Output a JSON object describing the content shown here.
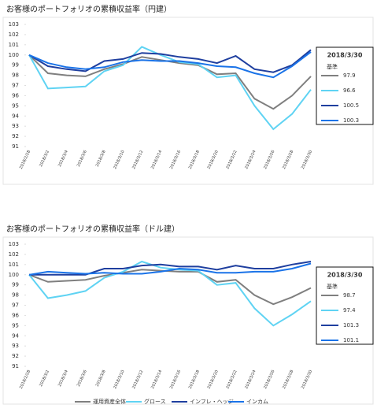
{
  "chart_data": [
    {
      "type": "line",
      "title": "お客様のポートフォリオの累積収益率（円建）",
      "categories": [
        "2018/2/28",
        "2018/3/2",
        "2018/3/4",
        "2018/3/6",
        "2018/3/8",
        "2018/3/10",
        "2018/3/12",
        "2018/3/14",
        "2018/3/16",
        "2018/3/18",
        "2018/3/20",
        "2018/3/22",
        "2018/3/24",
        "2018/3/26",
        "2018/3/28",
        "2018/3/30"
      ],
      "ylim": [
        91,
        103
      ],
      "yticks": [
        91,
        92,
        93,
        94,
        95,
        96,
        97,
        98,
        99,
        100,
        101,
        102,
        103
      ],
      "box_title": "2018/3/30",
      "box_subtitle": "基準",
      "series": [
        {
          "name": "運用資産全体",
          "color": "#7f7f7f",
          "values": [
            100,
            98.2,
            98.0,
            97.9,
            98.6,
            99.1,
            99.8,
            99.5,
            99.2,
            99.0,
            98.1,
            98.2,
            95.7,
            94.7,
            96.0,
            97.9
          ]
        },
        {
          "name": "グロース",
          "color": "#5fd3f3",
          "values": [
            100,
            96.7,
            96.8,
            96.9,
            98.4,
            99.0,
            100.8,
            100.0,
            99.3,
            99.1,
            97.8,
            98.0,
            95.0,
            92.7,
            94.2,
            96.6
          ]
        },
        {
          "name": "インフレ・ヘッジ",
          "color": "#1f3f9f",
          "values": [
            100,
            98.9,
            98.6,
            98.4,
            99.4,
            99.6,
            100.2,
            100.1,
            99.8,
            99.6,
            99.2,
            99.9,
            98.6,
            98.3,
            99.0,
            100.5
          ]
        },
        {
          "name": "インカム",
          "color": "#1a73e8",
          "values": [
            100,
            99.2,
            98.8,
            98.6,
            98.8,
            99.3,
            99.5,
            99.4,
            99.4,
            99.2,
            98.9,
            98.8,
            98.2,
            97.8,
            98.9,
            100.3
          ]
        }
      ]
    },
    {
      "type": "line",
      "title": "お客様のポートフォリオの累積収益率（ドル建）",
      "categories": [
        "2018/2/28",
        "2018/3/2",
        "2018/3/4",
        "2018/3/6",
        "2018/3/8",
        "2018/3/10",
        "2018/3/12",
        "2018/3/14",
        "2018/3/16",
        "2018/3/18",
        "2018/3/20",
        "2018/3/22",
        "2018/3/24",
        "2018/3/26",
        "2018/3/28",
        "2018/3/30"
      ],
      "ylim": [
        91,
        103
      ],
      "yticks": [
        91,
        92,
        93,
        94,
        95,
        96,
        97,
        98,
        99,
        100,
        101,
        102,
        103
      ],
      "box_title": "2018/3/30",
      "box_subtitle": "基準",
      "series": [
        {
          "color": "#7f7f7f",
          "values": [
            100,
            99.3,
            99.4,
            99.5,
            99.9,
            100.2,
            100.5,
            100.4,
            100.3,
            100.3,
            99.3,
            99.5,
            98.0,
            97.1,
            97.8,
            98.7
          ]
        },
        {
          "color": "#5fd3f3",
          "values": [
            100,
            97.7,
            98.0,
            98.4,
            99.7,
            100.3,
            101.3,
            100.7,
            100.5,
            100.4,
            99.0,
            99.2,
            96.7,
            95.0,
            96.1,
            97.4
          ]
        },
        {
          "color": "#1f3f9f",
          "values": [
            100,
            100.0,
            100.0,
            100.0,
            100.6,
            100.6,
            100.9,
            101.0,
            100.8,
            100.8,
            100.5,
            100.9,
            100.6,
            100.6,
            101.0,
            101.3
          ]
        },
        {
          "color": "#1a73e8",
          "values": [
            100,
            100.3,
            100.2,
            100.1,
            100.2,
            100.1,
            100.1,
            100.3,
            100.6,
            100.5,
            100.2,
            100.2,
            100.3,
            100.3,
            100.6,
            101.1
          ]
        }
      ]
    }
  ]
}
